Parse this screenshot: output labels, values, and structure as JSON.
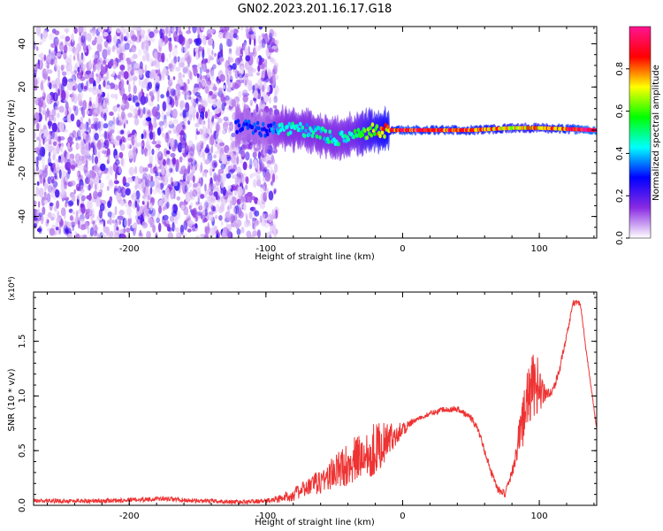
{
  "chart_data": [
    {
      "type": "heatmap",
      "title": "GN02.2023.201.16.17.G18",
      "xlabel": "Height of straight line (km)",
      "ylabel": "Frequency (Hz)",
      "xlim": [
        -270,
        142
      ],
      "ylim": [
        -50,
        48
      ],
      "xticks": [
        -200,
        -100,
        0,
        100
      ],
      "xtick_labels": [
        "-200",
        "-100",
        "0",
        "100"
      ],
      "yticks": [
        -40,
        -20,
        0,
        20,
        40
      ],
      "ytick_labels": [
        "-40",
        "-20",
        "0",
        "20",
        "40"
      ],
      "colorbar": {
        "label": "Normalized spectral amplitude",
        "range": [
          0,
          1
        ],
        "ticks": [
          0,
          0.2,
          0.4,
          0.6,
          0.8
        ],
        "tick_labels": [
          "0.0",
          "0.2",
          "0.4",
          "0.6",
          "0.8"
        ],
        "colors": [
          "#ffffff",
          "#8a2be2",
          "#0000ff",
          "#00ffff",
          "#00ff00",
          "#ffff00",
          "#ff0000",
          "#ff1493"
        ]
      },
      "noise_region": {
        "x_range": [
          -270,
          -92
        ],
        "freq_range": [
          -50,
          48
        ],
        "level": 0.12
      },
      "ridge": [
        {
          "x": -122,
          "f": 2,
          "amplitude": 0.3
        },
        {
          "x": -100,
          "f": 0,
          "amplitude": 0.3
        },
        {
          "x": -85,
          "f": 1,
          "amplitude": 0.45
        },
        {
          "x": -70,
          "f": 0,
          "amplitude": 0.45
        },
        {
          "x": -55,
          "f": -3,
          "amplitude": 0.45
        },
        {
          "x": -45,
          "f": -4,
          "amplitude": 0.45
        },
        {
          "x": -35,
          "f": -2,
          "amplitude": 0.5
        },
        {
          "x": -20,
          "f": 0,
          "amplitude": 0.7
        },
        {
          "x": 0,
          "f": 0,
          "amplitude": 0.9
        },
        {
          "x": 50,
          "f": 0,
          "amplitude": 0.85
        },
        {
          "x": 80,
          "f": 1,
          "amplitude": 0.75
        },
        {
          "x": 100,
          "f": 1,
          "amplitude": 0.75
        },
        {
          "x": 142,
          "f": 0,
          "amplitude": 1.0
        }
      ]
    },
    {
      "type": "line",
      "xlabel": "Height of straight line (km)",
      "ylabel": "SNR (10 * v/v)",
      "multiplier": "(x10⁴)",
      "xlim": [
        -270,
        142
      ],
      "ylim": [
        0,
        1.95
      ],
      "xticks": [
        -200,
        -100,
        0,
        100
      ],
      "xtick_labels": [
        "-200",
        "-100",
        "0",
        "100"
      ],
      "yticks": [
        0,
        0.5,
        1.0,
        1.5
      ],
      "ytick_labels": [
        "0.0",
        "0.5",
        "1.0",
        "1.5"
      ],
      "color": "#ee3333",
      "series": [
        {
          "x": [
            -270,
            -250,
            -220,
            -200,
            -175,
            -150,
            -120,
            -100,
            -90,
            -80,
            -70,
            -60,
            -50,
            -40,
            -30,
            -20,
            -10,
            0,
            10,
            20,
            30,
            40,
            50,
            55,
            60,
            65,
            70,
            75,
            80,
            85,
            90,
            95,
            100,
            105,
            110,
            115,
            120,
            125,
            130,
            135,
            142
          ],
          "y": [
            0.04,
            0.04,
            0.04,
            0.05,
            0.06,
            0.04,
            0.03,
            0.04,
            0.06,
            0.1,
            0.16,
            0.22,
            0.3,
            0.38,
            0.45,
            0.52,
            0.6,
            0.7,
            0.78,
            0.84,
            0.88,
            0.88,
            0.8,
            0.7,
            0.5,
            0.3,
            0.14,
            0.1,
            0.3,
            0.6,
            0.9,
            1.1,
            1.08,
            1.02,
            1.05,
            1.25,
            1.55,
            1.85,
            1.85,
            1.35,
            0.7
          ]
        }
      ],
      "noise_amplitude": [
        {
          "x": -270,
          "amp": 0.02
        },
        {
          "x": -100,
          "amp": 0.02
        },
        {
          "x": -70,
          "amp": 0.08
        },
        {
          "x": -40,
          "amp": 0.2
        },
        {
          "x": -20,
          "amp": 0.25
        },
        {
          "x": -5,
          "amp": 0.1
        },
        {
          "x": 10,
          "amp": 0.02
        },
        {
          "x": 80,
          "amp": 0.04
        },
        {
          "x": 88,
          "amp": 0.25
        },
        {
          "x": 98,
          "amp": 0.3
        },
        {
          "x": 105,
          "amp": 0.05
        },
        {
          "x": 142,
          "amp": 0.01
        }
      ]
    }
  ]
}
